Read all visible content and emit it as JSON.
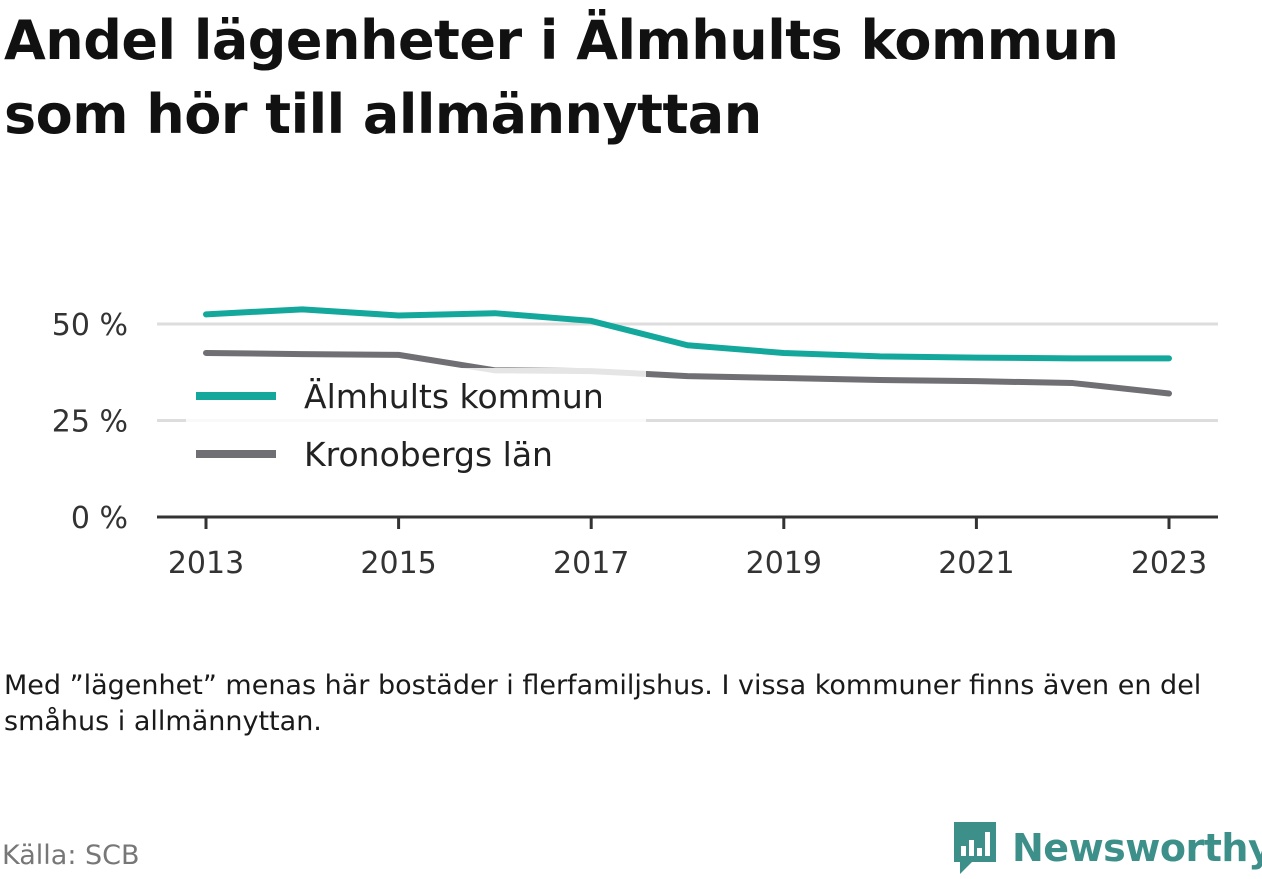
{
  "title": "Andel lägenheter i Älmhults kommun som hör till allmännyttan",
  "note": "Med ”lägenhet” menas här bostäder i flerfamiljshus. I vissa kommuner finns även en del småhus i allmännyttan.",
  "source": "Källa: SCB",
  "brand": "Newsworthy",
  "colors": {
    "almhult": "#14a89c",
    "kronoberg": "#6f6f74",
    "grid": "#dddddd",
    "axis": "#333333",
    "brand": "#3d8f8a"
  },
  "icons": {
    "brand_logo": "chart-speech-bubble-icon"
  },
  "chart_data": {
    "type": "line",
    "title": "Andel lägenheter i Älmhults kommun som hör till allmännyttan",
    "xlabel": "",
    "ylabel": "",
    "x": [
      2013,
      2014,
      2015,
      2016,
      2017,
      2018,
      2019,
      2020,
      2021,
      2022,
      2023
    ],
    "xticks": [
      "2013",
      "2015",
      "2017",
      "2019",
      "2021",
      "2023"
    ],
    "yticks": [
      "0 %",
      "25 %",
      "50 %"
    ],
    "ylim": [
      0,
      50
    ],
    "grid": true,
    "legend_position": "top-left",
    "series": [
      {
        "name": "Älmhults kommun",
        "color": "#14a89c",
        "values": [
          52.5,
          53.8,
          52.2,
          52.8,
          50.8,
          44.5,
          42.5,
          41.6,
          41.3,
          41.1,
          41.1
        ]
      },
      {
        "name": "Kronobergs län",
        "color": "#6f6f74",
        "values": [
          42.5,
          42.2,
          42.0,
          38.0,
          37.8,
          36.5,
          36.0,
          35.5,
          35.2,
          34.7,
          32.0
        ]
      }
    ]
  }
}
